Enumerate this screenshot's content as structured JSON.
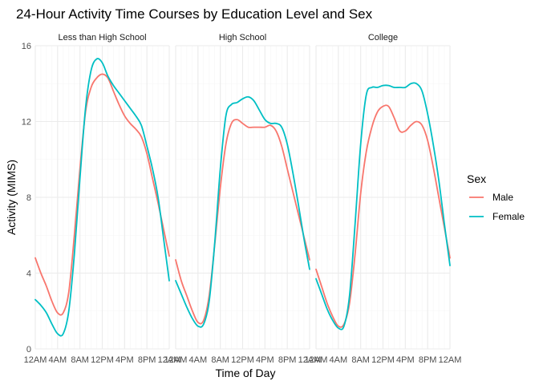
{
  "chart_data": {
    "type": "line",
    "title": "24-Hour Activity Time Courses by Education Level and Sex",
    "xlabel": "Time of Day",
    "ylabel": "Activity (MIMS)",
    "ylim": [
      0,
      16
    ],
    "xlim": [
      0,
      24
    ],
    "yticks": [
      0,
      4,
      8,
      12,
      16
    ],
    "xticks": [
      0,
      4,
      8,
      12,
      16,
      20,
      24
    ],
    "xtick_labels": [
      "12AM",
      "4AM",
      "8AM",
      "12PM",
      "4PM",
      "8PM",
      "12AM"
    ],
    "legend": {
      "title": "Sex",
      "position": "right",
      "entries": [
        "Male",
        "Female"
      ]
    },
    "colors": {
      "Male": "#F8766D",
      "Female": "#00BFC4"
    },
    "grid": true,
    "facets": [
      {
        "label": "Less than High School",
        "series": [
          {
            "name": "Male",
            "x": [
              0,
              1,
              2,
              3,
              4,
              5,
              6,
              7,
              8,
              9,
              10,
              11,
              12,
              13,
              14,
              15,
              16,
              17,
              18,
              19,
              20,
              21,
              22,
              23,
              24
            ],
            "y": [
              4.8,
              4.0,
              3.3,
              2.5,
              1.9,
              1.9,
              3.0,
              6.0,
              9.5,
              12.5,
              13.8,
              14.3,
              14.5,
              14.3,
              13.6,
              12.9,
              12.3,
              11.9,
              11.6,
              11.2,
              10.3,
              9.0,
              7.7,
              6.3,
              4.9
            ]
          },
          {
            "name": "Female",
            "x": [
              0,
              1,
              2,
              3,
              4,
              5,
              6,
              7,
              8,
              9,
              10,
              11,
              12,
              13,
              14,
              15,
              16,
              17,
              18,
              19,
              20,
              21,
              22,
              23,
              24
            ],
            "y": [
              2.6,
              2.3,
              1.9,
              1.3,
              0.8,
              0.8,
              2.0,
              5.0,
              9.0,
              12.7,
              14.7,
              15.3,
              15.1,
              14.4,
              13.9,
              13.5,
              13.1,
              12.7,
              12.3,
              11.8,
              10.7,
              9.5,
              8.0,
              5.8,
              3.6
            ]
          }
        ]
      },
      {
        "label": "High School",
        "series": [
          {
            "name": "Male",
            "x": [
              0,
              1,
              2,
              3,
              4,
              5,
              6,
              7,
              8,
              9,
              10,
              11,
              12,
              13,
              14,
              15,
              16,
              17,
              18,
              19,
              20,
              21,
              22,
              23,
              24
            ],
            "y": [
              4.7,
              3.6,
              2.8,
              2.0,
              1.4,
              1.5,
              2.8,
              5.5,
              8.5,
              10.8,
              11.9,
              12.1,
              11.9,
              11.7,
              11.7,
              11.7,
              11.7,
              11.8,
              11.5,
              10.7,
              9.5,
              8.3,
              7.1,
              5.9,
              4.7
            ]
          },
          {
            "name": "Female",
            "x": [
              0,
              1,
              2,
              3,
              4,
              5,
              6,
              7,
              8,
              9,
              10,
              11,
              12,
              13,
              14,
              15,
              16,
              17,
              18,
              19,
              20,
              21,
              22,
              23,
              24
            ],
            "y": [
              3.6,
              2.9,
              2.2,
              1.6,
              1.2,
              1.3,
              2.5,
              5.6,
              9.5,
              12.3,
              12.9,
              13.0,
              13.2,
              13.3,
              13.1,
              12.6,
              12.1,
              11.9,
              11.9,
              11.7,
              10.8,
              9.3,
              7.6,
              5.8,
              4.2
            ]
          }
        ]
      },
      {
        "label": "College",
        "series": [
          {
            "name": "Male",
            "x": [
              0,
              1,
              2,
              3,
              4,
              5,
              6,
              7,
              8,
              9,
              10,
              11,
              12,
              13,
              14,
              15,
              16,
              17,
              18,
              19,
              20,
              21,
              22,
              23,
              24
            ],
            "y": [
              4.2,
              3.3,
              2.4,
              1.7,
              1.2,
              1.3,
              2.4,
              5.0,
              8.2,
              10.4,
              11.7,
              12.5,
              12.8,
              12.8,
              12.2,
              11.5,
              11.5,
              11.8,
              12.0,
              11.8,
              11.0,
              9.6,
              8.0,
              6.4,
              4.8
            ]
          },
          {
            "name": "Female",
            "x": [
              0,
              1,
              2,
              3,
              4,
              5,
              6,
              7,
              8,
              9,
              10,
              11,
              12,
              13,
              14,
              15,
              16,
              17,
              18,
              19,
              20,
              21,
              22,
              23,
              24
            ],
            "y": [
              3.7,
              2.9,
              2.1,
              1.5,
              1.1,
              1.2,
              2.8,
              6.6,
              10.8,
              13.4,
              13.8,
              13.8,
              13.9,
              13.9,
              13.8,
              13.8,
              13.8,
              14.0,
              14.0,
              13.6,
              12.4,
              10.8,
              8.9,
              6.6,
              4.4
            ]
          }
        ]
      }
    ]
  }
}
